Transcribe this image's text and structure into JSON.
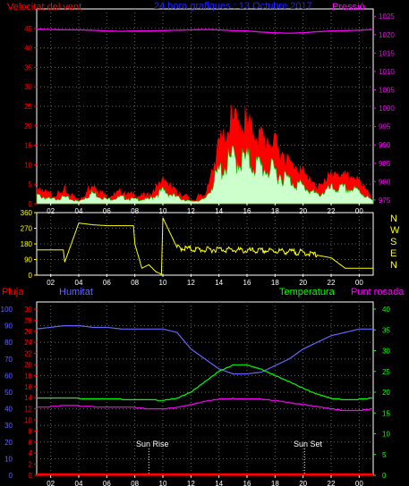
{
  "top_panel": {
    "left_title": "Velocitat del vent",
    "center_title": "24 hora grafiques : 13 Octubre 2017",
    "right_title": "Pressió",
    "left_ticks": [
      "0",
      "5",
      "10",
      "15",
      "20",
      "25",
      "30",
      "35",
      "40",
      "45"
    ],
    "right_ticks": [
      "975",
      "980",
      "985",
      "990",
      "995",
      "1000",
      "1005",
      "1010",
      "1015",
      "1020",
      "1025"
    ],
    "x_ticks": [
      "02",
      "04",
      "06",
      "08",
      "10",
      "12",
      "14",
      "16",
      "18",
      "20",
      "22",
      "00"
    ]
  },
  "mid_panel": {
    "left_ticks": [
      "0",
      "90",
      "180",
      "270",
      "360"
    ],
    "right_labels": [
      "N",
      "W",
      "S",
      "E",
      "N"
    ],
    "x_ticks": [
      "02",
      "04",
      "06",
      "08",
      "10",
      "12",
      "14",
      "16",
      "18",
      "20",
      "22",
      "00"
    ]
  },
  "bottom_panel": {
    "label_rain": "Pluja",
    "label_humidity": "Humitat",
    "label_temperature": "Temperatura",
    "label_dewpoint": "Punt rosada",
    "humidity_ticks": [
      "0",
      "10",
      "20",
      "30",
      "40",
      "50",
      "60",
      "70",
      "80",
      "90",
      "100"
    ],
    "rain_ticks": [
      "0",
      "2",
      "4",
      "6",
      "8",
      "10",
      "12",
      "14",
      "16",
      "18",
      "20",
      "22",
      "24",
      "26",
      "28",
      "30"
    ],
    "temp_ticks": [
      "0",
      "5",
      "10",
      "15",
      "20",
      "25",
      "30",
      "35",
      "40"
    ],
    "x_ticks": [
      "02",
      "04",
      "06",
      "08",
      "10",
      "12",
      "14",
      "16",
      "18",
      "20",
      "22",
      "00"
    ],
    "sunrise_label": "Sun Rise",
    "sunset_label": "Sun Set"
  },
  "colors": {
    "wind_gust": "#ff0000",
    "wind_avg": "#ccffcc",
    "pressure": "#ff00ff",
    "direction": "#ffff00",
    "humidity": "#6666ff",
    "temperature": "#00ff00",
    "dewpoint": "#ff00ff",
    "rain": "#ff0000"
  },
  "chart_data": [
    {
      "type": "area",
      "x_unit": "hour",
      "x": [
        0,
        1,
        2,
        3,
        4,
        5,
        6,
        7,
        8,
        9,
        10,
        11,
        12,
        13,
        14,
        15,
        16,
        17,
        18,
        19,
        20,
        21,
        22,
        23,
        24
      ],
      "series": [
        {
          "name": "Velocitat del vent",
          "axis": "left",
          "values": [
            4,
            2,
            3,
            1,
            5,
            2,
            3,
            2,
            2,
            6,
            3,
            1,
            2,
            15,
            21,
            20,
            17,
            15,
            11,
            8,
            4,
            7,
            7,
            6,
            1
          ]
        },
        {
          "name": "Pressió",
          "axis": "right",
          "values": [
            1021.5,
            1021.4,
            1021.3,
            1021.3,
            1021.2,
            1021.0,
            1020.9,
            1021.0,
            1021.0,
            1021.1,
            1021.2,
            1021.3,
            1021.4,
            1021.3,
            1021.1,
            1021.0,
            1020.7,
            1020.5,
            1020.4,
            1020.5,
            1020.8,
            1021.0,
            1021.1,
            1021.2,
            1021.4
          ]
        }
      ],
      "left_range": [
        0,
        50
      ],
      "right_range": [
        974,
        1027
      ]
    },
    {
      "type": "line",
      "x_unit": "hour",
      "x": [
        0,
        1,
        1.9,
        2,
        3,
        4,
        5,
        6,
        6.9,
        7,
        7.5,
        8,
        8.5,
        8.9,
        9,
        10,
        11,
        12,
        13,
        14,
        15,
        16,
        17,
        18,
        19,
        20,
        21,
        22,
        23,
        24
      ],
      "values": [
        145,
        145,
        145,
        75,
        300,
        290,
        285,
        285,
        285,
        180,
        40,
        60,
        20,
        5,
        330,
        160,
        150,
        145,
        150,
        145,
        140,
        140,
        140,
        135,
        130,
        115,
        100,
        40,
        40,
        40
      ],
      "ylim": [
        0,
        360
      ]
    },
    {
      "type": "line",
      "x_unit": "hour",
      "x": [
        0,
        1,
        2,
        3,
        4,
        5,
        6,
        7,
        8,
        9,
        10,
        11,
        12,
        13,
        14,
        15,
        16,
        17,
        18,
        19,
        20,
        21,
        22,
        23,
        24
      ],
      "series": [
        {
          "name": "Humitat",
          "axis": "left",
          "values": [
            88,
            89,
            90,
            90,
            89,
            89,
            88,
            88,
            88,
            88,
            86,
            76,
            70,
            64,
            61,
            61,
            62,
            66,
            70,
            76,
            80,
            84,
            86,
            88,
            88
          ]
        },
        {
          "name": "Temperatura",
          "axis": "right",
          "values": [
            18.5,
            18.5,
            18.5,
            18.5,
            18.4,
            18.4,
            18.3,
            18.2,
            18.2,
            18.0,
            18.5,
            20.0,
            22.5,
            25.0,
            26.5,
            26.5,
            25.5,
            24.0,
            22.5,
            21.0,
            19.5,
            18.5,
            18.2,
            18.3,
            18.6
          ]
        },
        {
          "name": "Punt rosada",
          "axis": "right",
          "values": [
            16.3,
            16.5,
            16.8,
            16.7,
            16.5,
            16.4,
            16.4,
            16.3,
            16.0,
            16.0,
            16.3,
            17.0,
            17.8,
            18.3,
            18.5,
            18.4,
            18.3,
            18.0,
            17.5,
            17.0,
            16.5,
            16.0,
            15.5,
            15.6,
            16.0
          ]
        },
        {
          "name": "Pluja",
          "axis": "rain",
          "values": [
            0,
            0,
            0,
            0,
            0,
            0,
            0,
            0,
            0,
            0,
            0,
            0,
            0,
            0,
            0,
            0,
            0,
            0,
            0,
            0,
            0,
            0,
            0,
            0,
            0
          ]
        }
      ],
      "left_range": [
        0,
        100
      ],
      "rain_range": [
        0,
        30
      ],
      "right_range": [
        0,
        40
      ]
    }
  ]
}
